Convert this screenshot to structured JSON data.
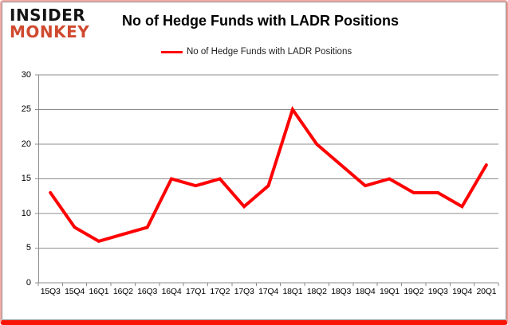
{
  "brand": {
    "line1": "INSIDER",
    "line2": "MONKEY"
  },
  "header": {
    "title": "No of Hedge Funds with LADR Positions"
  },
  "legend": {
    "label": "No of Hedge Funds with LADR Positions"
  },
  "colors": {
    "series_red": "#fe0000",
    "grid_gray": "#8c8c8c",
    "logo_red": "#cf4a2f",
    "frame_bottom_red": "#fb1405",
    "text_black": "#000000"
  },
  "chart_data": {
    "type": "line",
    "title": "No of Hedge Funds with LADR Positions",
    "categories": [
      "15Q3",
      "15Q4",
      "16Q1",
      "16Q2",
      "16Q3",
      "16Q4",
      "17Q1",
      "17Q2",
      "17Q3",
      "17Q4",
      "18Q1",
      "18Q2",
      "18Q3",
      "18Q4",
      "19Q1",
      "19Q2",
      "19Q3",
      "19Q4",
      "20Q1"
    ],
    "series": [
      {
        "name": "No of Hedge Funds with LADR Positions",
        "color": "#fe0000",
        "values": [
          13,
          8,
          6,
          7,
          8,
          15,
          14,
          15,
          11,
          14,
          25,
          20,
          17,
          14,
          15,
          13,
          13,
          11,
          17
        ]
      }
    ],
    "xlabel": "",
    "ylabel": "",
    "ylim": [
      0,
      30
    ],
    "yticks": [
      0,
      5,
      10,
      15,
      20,
      25,
      30
    ],
    "grid": "horizontal",
    "legend_position": "top-center"
  }
}
